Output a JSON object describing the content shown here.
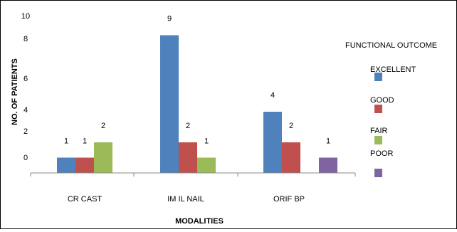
{
  "chart_data": {
    "type": "bar",
    "categories": [
      "CR CAST",
      "IM IL NAIL",
      "ORIF BP"
    ],
    "series": [
      {
        "name": "EXCELLENT",
        "color": "#4F81BD",
        "values": [
          1,
          9,
          4
        ]
      },
      {
        "name": "GOOD",
        "color": "#C0504D",
        "values": [
          1,
          2,
          2
        ]
      },
      {
        "name": "FAIR",
        "color": "#9BBB59",
        "values": [
          2,
          1,
          null
        ]
      },
      {
        "name": "POOR",
        "color": "#8064A2",
        "values": [
          null,
          null,
          1
        ]
      }
    ],
    "xlabel": "MODALITIES",
    "ylabel": "NO. OF PATIENTS",
    "legend_title": "FUNCTIONAL OUTCOME",
    "legend_position": "right",
    "ytick_labels": [
      "10",
      "8",
      "6",
      "4",
      "2",
      "0"
    ],
    "grid": false
  }
}
